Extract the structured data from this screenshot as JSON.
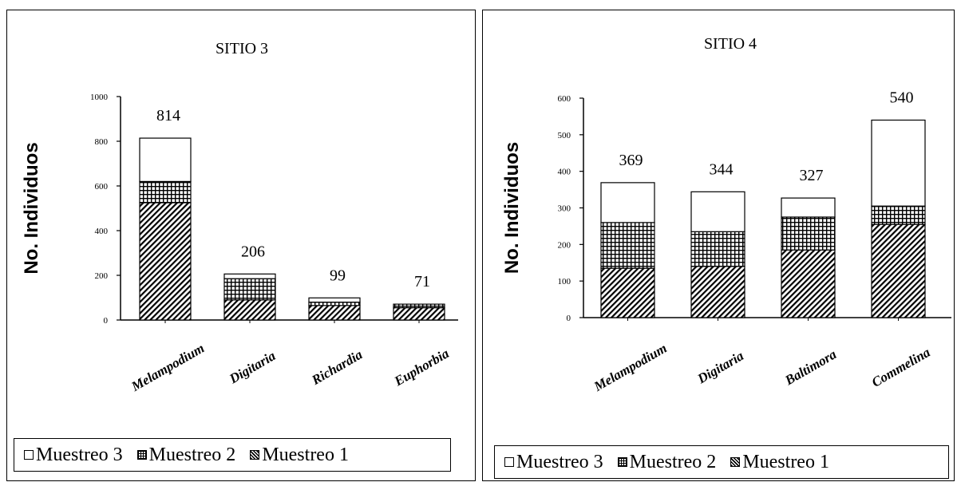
{
  "chart_data": [
    {
      "type": "bar",
      "stacked": true,
      "title": "SITIO 3",
      "ylabel": "No. Individuos",
      "xlabel": "",
      "ylim": [
        0,
        1000
      ],
      "yticks": [
        0,
        200,
        400,
        600,
        800,
        1000
      ],
      "categories": [
        "Melampodium",
        "Digitaria",
        "Richardia",
        "Euphorbia"
      ],
      "series": [
        {
          "name": "Muestreo 1",
          "values": [
            525,
            90,
            65,
            55
          ]
        },
        {
          "name": "Muestreo 2",
          "values": [
            95,
            95,
            15,
            16
          ]
        },
        {
          "name": "Muestreo 3",
          "values": [
            194,
            21,
            19,
            0
          ]
        }
      ],
      "totals": [
        "814",
        "206",
        "99",
        "71"
      ],
      "legend": [
        "Muestreo 3",
        "Muestreo 2",
        "Muestreo 1"
      ],
      "legend_position": "bottom",
      "grid": false
    },
    {
      "type": "bar",
      "stacked": true,
      "title": "SITIO 4",
      "ylabel": "No. Individuos",
      "xlabel": "",
      "ylim": [
        0,
        600
      ],
      "yticks": [
        0,
        100,
        200,
        300,
        400,
        500,
        600
      ],
      "categories": [
        "Melampodium",
        "Digitaria",
        "Baltimora",
        "Commelina"
      ],
      "series": [
        {
          "name": "Muestreo 1",
          "values": [
            135,
            140,
            185,
            255
          ]
        },
        {
          "name": "Muestreo 2",
          "values": [
            125,
            95,
            90,
            50
          ]
        },
        {
          "name": "Muestreo 3",
          "values": [
            109,
            109,
            52,
            235
          ]
        }
      ],
      "totals": [
        "369",
        "344",
        "327",
        "540"
      ],
      "legend": [
        "Muestreo 3",
        "Muestreo 2",
        "Muestreo 1"
      ],
      "legend_position": "bottom",
      "grid": false
    }
  ]
}
